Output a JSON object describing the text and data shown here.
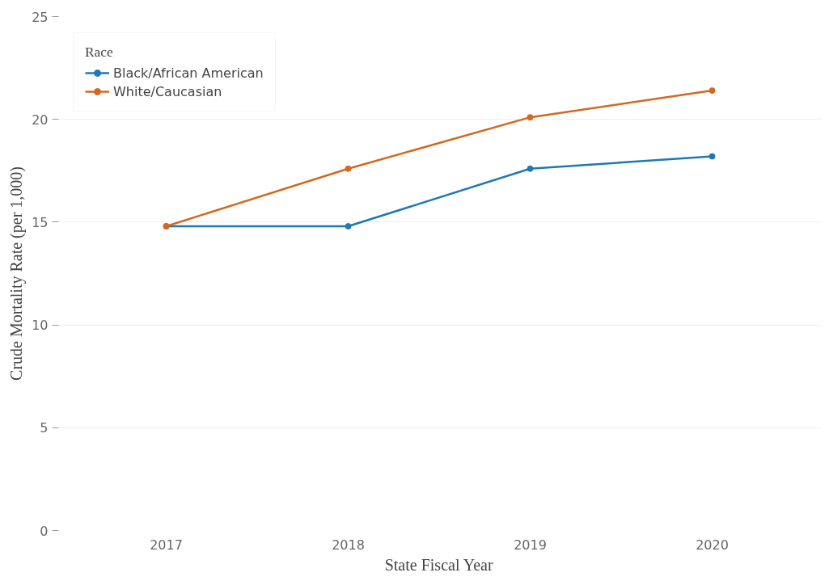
{
  "chart_data": {
    "type": "line",
    "xlabel": "State Fiscal Year",
    "ylabel": "Crude Mortality Rate (per 1,000)",
    "legend_title": "Race",
    "categories": [
      "2017",
      "2018",
      "2019",
      "2020"
    ],
    "series": [
      {
        "name": "Black/African American",
        "color": "#1f78b4",
        "values": [
          14.8,
          14.8,
          17.6,
          18.2
        ]
      },
      {
        "name": "White/Caucasian",
        "color": "#d2691e",
        "values": [
          14.8,
          17.6,
          20.1,
          21.4
        ]
      }
    ],
    "ylim": [
      0,
      25
    ],
    "yticks": [
      0,
      5,
      10,
      15,
      20,
      25
    ],
    "grid": "y",
    "legend": "top left",
    "marker": "circle",
    "line_style": "solid"
  }
}
